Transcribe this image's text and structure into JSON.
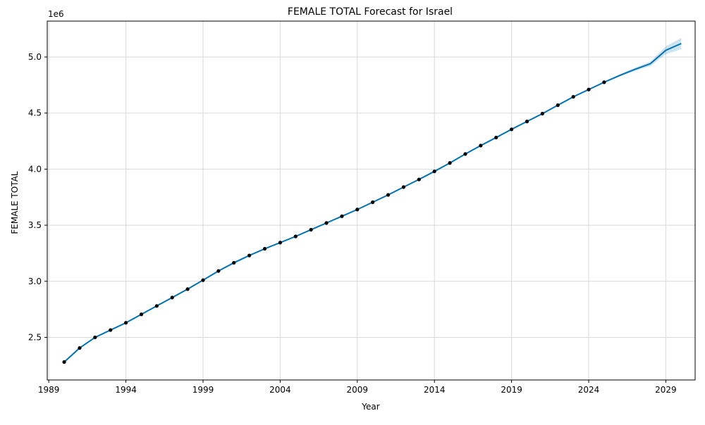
{
  "chart_data": {
    "type": "line",
    "title": "FEMALE TOTAL Forecast for Israel",
    "xlabel": "Year",
    "ylabel": "FEMALE TOTAL",
    "y_offset_label": "1e6",
    "xlim": [
      1988.9,
      2030.9
    ],
    "ylim": [
      2120000,
      5320000
    ],
    "x_ticks": [
      1989,
      1994,
      1999,
      2004,
      2009,
      2014,
      2019,
      2024,
      2029
    ],
    "x_tick_labels": [
      "1989",
      "1994",
      "1999",
      "2004",
      "2009",
      "2014",
      "2019",
      "2024",
      "2029"
    ],
    "y_ticks": [
      2500000,
      3000000,
      3500000,
      4000000,
      4500000,
      5000000
    ],
    "y_tick_labels": [
      "2.5",
      "3.0",
      "3.5",
      "4.0",
      "4.5",
      "5.0"
    ],
    "grid": true,
    "colors": {
      "forecast_line": "#0072B2",
      "uncertainty_band": "#0072B2",
      "observed_points": "#000000",
      "grid": "#d9d9d9"
    },
    "observed": {
      "x": [
        1990,
        1991,
        1992,
        1993,
        1994,
        1995,
        1996,
        1997,
        1998,
        1999,
        2000,
        2001,
        2002,
        2003,
        2004,
        2005,
        2006,
        2007,
        2008,
        2009,
        2010,
        2011,
        2012,
        2013,
        2014,
        2015,
        2016,
        2017,
        2018,
        2019,
        2020,
        2021,
        2022,
        2023,
        2024,
        2025
      ],
      "y": [
        2280000,
        2405000,
        2500000,
        2565000,
        2630000,
        2705000,
        2780000,
        2855000,
        2930000,
        3010000,
        3092000,
        3165000,
        3230000,
        3290000,
        3345000,
        3400000,
        3460000,
        3520000,
        3580000,
        3640000,
        3705000,
        3770000,
        3840000,
        3908000,
        3980000,
        4055000,
        4135000,
        4210000,
        4282000,
        4355000,
        4425000,
        4495000,
        4570000,
        4645000,
        4710000,
        4775000
      ]
    },
    "forecast": {
      "x": [
        1990,
        1991,
        1992,
        1993,
        1994,
        1995,
        1996,
        1997,
        1998,
        1999,
        2000,
        2001,
        2002,
        2003,
        2004,
        2005,
        2006,
        2007,
        2008,
        2009,
        2010,
        2011,
        2012,
        2013,
        2014,
        2015,
        2016,
        2017,
        2018,
        2019,
        2020,
        2021,
        2022,
        2023,
        2024,
        2025,
        2026,
        2027,
        2028,
        2029,
        2030
      ],
      "y": [
        2280000,
        2405000,
        2500000,
        2565000,
        2630000,
        2705000,
        2780000,
        2855000,
        2930000,
        3010000,
        3092000,
        3165000,
        3230000,
        3290000,
        3345000,
        3400000,
        3460000,
        3520000,
        3580000,
        3640000,
        3705000,
        3770000,
        3840000,
        3908000,
        3980000,
        4055000,
        4135000,
        4210000,
        4282000,
        4355000,
        4425000,
        4495000,
        4570000,
        4645000,
        4710000,
        4775000,
        4835000,
        4890000,
        4940000,
        5060000,
        5120000
      ],
      "lower": [
        2275000,
        2400000,
        2495000,
        2560000,
        2625000,
        2700000,
        2775000,
        2850000,
        2925000,
        3005000,
        3087000,
        3160000,
        3225000,
        3285000,
        3340000,
        3395000,
        3455000,
        3515000,
        3575000,
        3635000,
        3700000,
        3765000,
        3835000,
        3903000,
        3975000,
        4050000,
        4130000,
        4205000,
        4277000,
        4350000,
        4420000,
        4490000,
        4565000,
        4640000,
        4705000,
        4768000,
        4825000,
        4875000,
        4920000,
        5025000,
        5070000
      ],
      "upper": [
        2285000,
        2410000,
        2505000,
        2570000,
        2635000,
        2710000,
        2785000,
        2860000,
        2935000,
        3015000,
        3097000,
        3170000,
        3235000,
        3295000,
        3350000,
        3405000,
        3465000,
        3525000,
        3585000,
        3645000,
        3710000,
        3775000,
        3845000,
        3913000,
        3985000,
        4060000,
        4140000,
        4215000,
        4287000,
        4360000,
        4430000,
        4500000,
        4575000,
        4650000,
        4715000,
        4782000,
        4845000,
        4905000,
        4960000,
        5095000,
        5170000
      ]
    }
  }
}
